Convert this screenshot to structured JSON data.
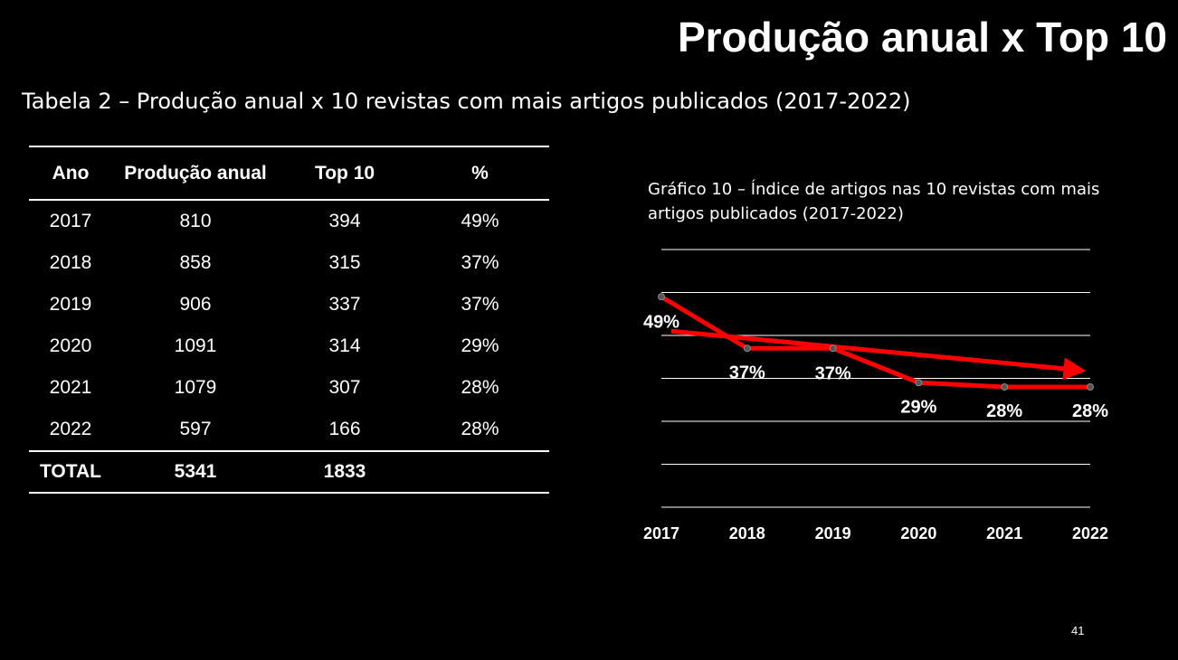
{
  "slide_title": "Produção anual x Top 10",
  "table_caption": "Tabela 2 – Produção anual x  10 revistas com mais artigos publicados (2017-2022)",
  "table": {
    "headers": [
      "Ano",
      "Produção anual",
      "Top 10",
      "%"
    ],
    "rows": [
      [
        "2017",
        "810",
        "394",
        "49%"
      ],
      [
        "2018",
        "858",
        "315",
        "37%"
      ],
      [
        "2019",
        "906",
        "337",
        "37%"
      ],
      [
        "2020",
        "1091",
        "314",
        "29%"
      ],
      [
        "2021",
        "1079",
        "307",
        "28%"
      ],
      [
        "2022",
        "597",
        "166",
        "28%"
      ]
    ],
    "total": [
      "TOTAL",
      "5341",
      "1833",
      ""
    ]
  },
  "chart_caption": "Gráfico 10 – Índice de artigos nas 10 revistas com mais artigos publicados (2017-2022)",
  "chart_data": {
    "type": "line",
    "title": "Gráfico 10 – Índice de artigos nas 10 revistas com mais artigos publicados (2017-2022)",
    "categories": [
      "2017",
      "2018",
      "2019",
      "2020",
      "2021",
      "2022"
    ],
    "series": [
      {
        "name": "%",
        "values": [
          49,
          37,
          37,
          29,
          28,
          28
        ],
        "labels": [
          "49%",
          "37%",
          "37%",
          "29%",
          "28%",
          "28%"
        ]
      }
    ],
    "trend": {
      "start": 41,
      "end": 32
    },
    "ylim": [
      0,
      60
    ],
    "gridlines": [
      0,
      10,
      20,
      30,
      40,
      50,
      60
    ],
    "xlabel": "",
    "ylabel": "",
    "grid": true,
    "legend": "none",
    "colors": {
      "line": "#ff0000",
      "grid": "#ffffff",
      "marker": "#555555",
      "text": "#ffffff"
    }
  },
  "page_number": "41"
}
